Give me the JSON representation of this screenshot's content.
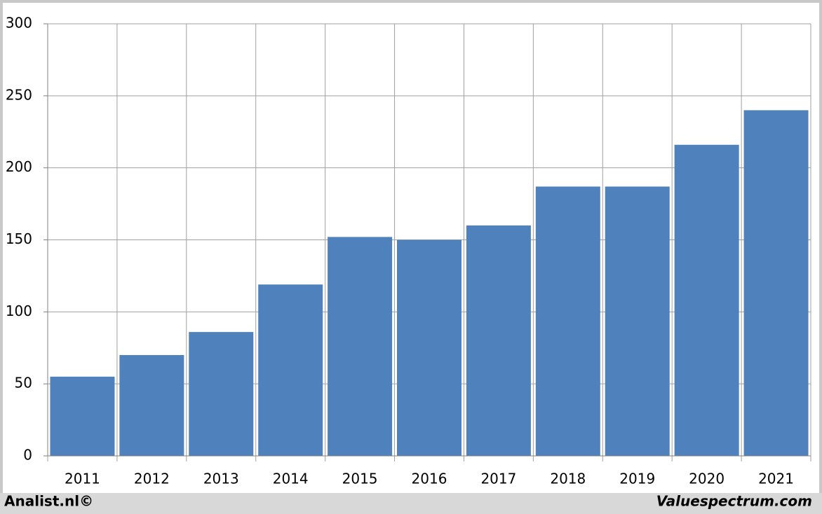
{
  "chart_data": {
    "type": "bar",
    "categories": [
      "2011",
      "2012",
      "2013",
      "2014",
      "2015",
      "2016",
      "2017",
      "2018",
      "2019",
      "2020",
      "2021"
    ],
    "values": [
      55,
      70,
      86,
      119,
      152,
      150,
      160,
      187,
      187,
      216,
      240
    ],
    "color": "#4f81bd",
    "ylim": [
      0,
      300
    ],
    "yticks": [
      0,
      50,
      100,
      150,
      200,
      250,
      300
    ],
    "grid": true,
    "credits": [
      "Analist.nl©",
      "Valuespectrum.com"
    ]
  }
}
